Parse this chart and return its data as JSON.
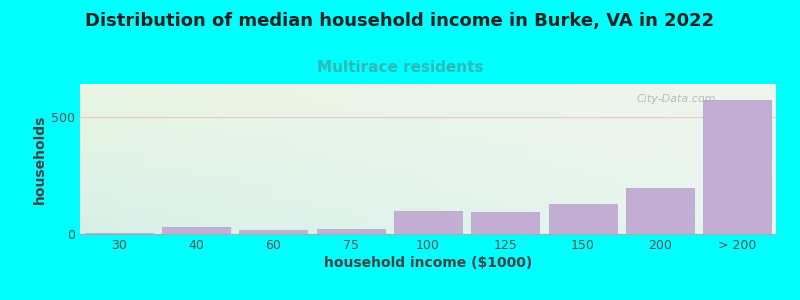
{
  "categories": [
    "30",
    "40",
    "60",
    "75",
    "100",
    "125",
    "150",
    "200",
    "> 200"
  ],
  "values": [
    5,
    30,
    15,
    20,
    100,
    95,
    130,
    195,
    570
  ],
  "bar_color": "#c4afd4",
  "bar_edge_color": "#b8a8cc",
  "title": "Distribution of median household income in Burke, VA in 2022",
  "subtitle": "Multirace residents",
  "xlabel": "household income ($1000)",
  "ylabel": "households",
  "title_fontsize": 13,
  "subtitle_fontsize": 11,
  "subtitle_color": "#2eb8b8",
  "axis_label_fontsize": 10,
  "tick_fontsize": 9,
  "background_color": "#00ffff",
  "plot_bg_colors": [
    "#eaf5e2",
    "#f5f5f0",
    "#dff0f0"
  ],
  "ylim": [
    0,
    640
  ],
  "yticks": [
    0,
    500
  ],
  "gridline_color": "#e8c8c8",
  "watermark": "City-Data.com"
}
